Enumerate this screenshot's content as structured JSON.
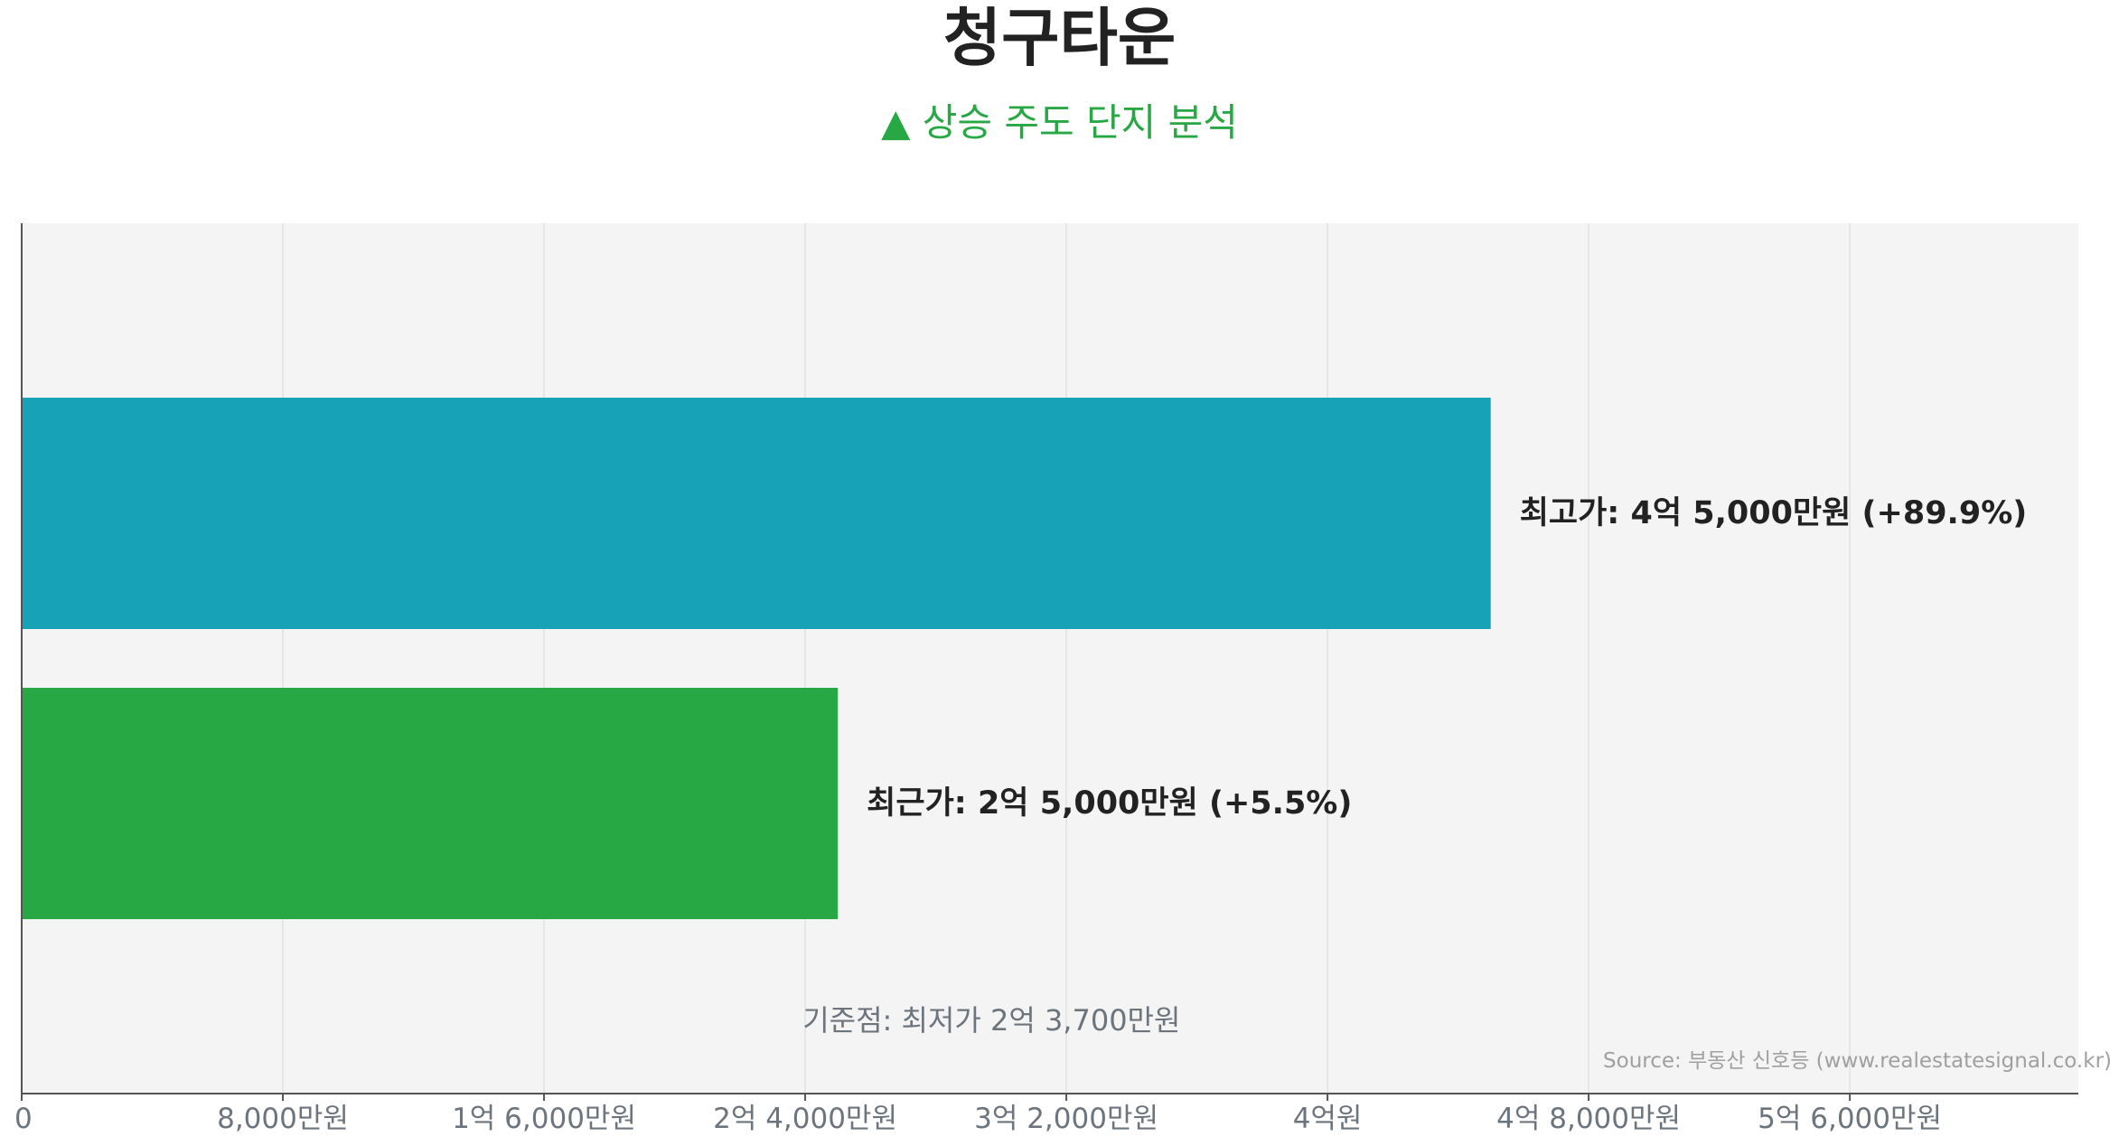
{
  "title": "청구타운",
  "subtitle": "▲ 상승 주도 단지 분석",
  "source": "Source: 부동산 신호등 (www.realestatesignal.co.kr)",
  "colors": {
    "subtitle": "#28a745",
    "high_bar": "#18a2b8",
    "recent_bar": "#28a745",
    "plot_background": "#f4f4f4",
    "grid": "#e2e2e2",
    "axis": "#555555",
    "value_label": "#222222",
    "baseline_note": "#6c757d",
    "tick_label": "#6c757d"
  },
  "chart_data": {
    "type": "bar",
    "orientation": "horizontal",
    "unit": "만원",
    "xlim": [
      0,
      63000
    ],
    "x_ticks": [
      {
        "value": 0,
        "label": "0"
      },
      {
        "value": 8000,
        "label": "8,000만원"
      },
      {
        "value": 16000,
        "label": "1억 6,000만원"
      },
      {
        "value": 24000,
        "label": "2억 4,000만원"
      },
      {
        "value": 32000,
        "label": "3억 2,000만원"
      },
      {
        "value": 40000,
        "label": "4억원"
      },
      {
        "value": 48000,
        "label": "4억 8,000만원"
      },
      {
        "value": 56000,
        "label": "5억 6,000만원"
      }
    ],
    "bars": [
      {
        "value": 45000,
        "label": "최고가: 4억 5,000만원 (+89.9%)",
        "color": "#18a2b8"
      },
      {
        "value": 25000,
        "label": "최근가: 2억 5,000만원 (+5.5%)",
        "color": "#28a745"
      }
    ],
    "baseline": {
      "value": 23700,
      "label": "기준점: 최저가 2억 3,700만원"
    },
    "grid": true,
    "legend": "none"
  }
}
